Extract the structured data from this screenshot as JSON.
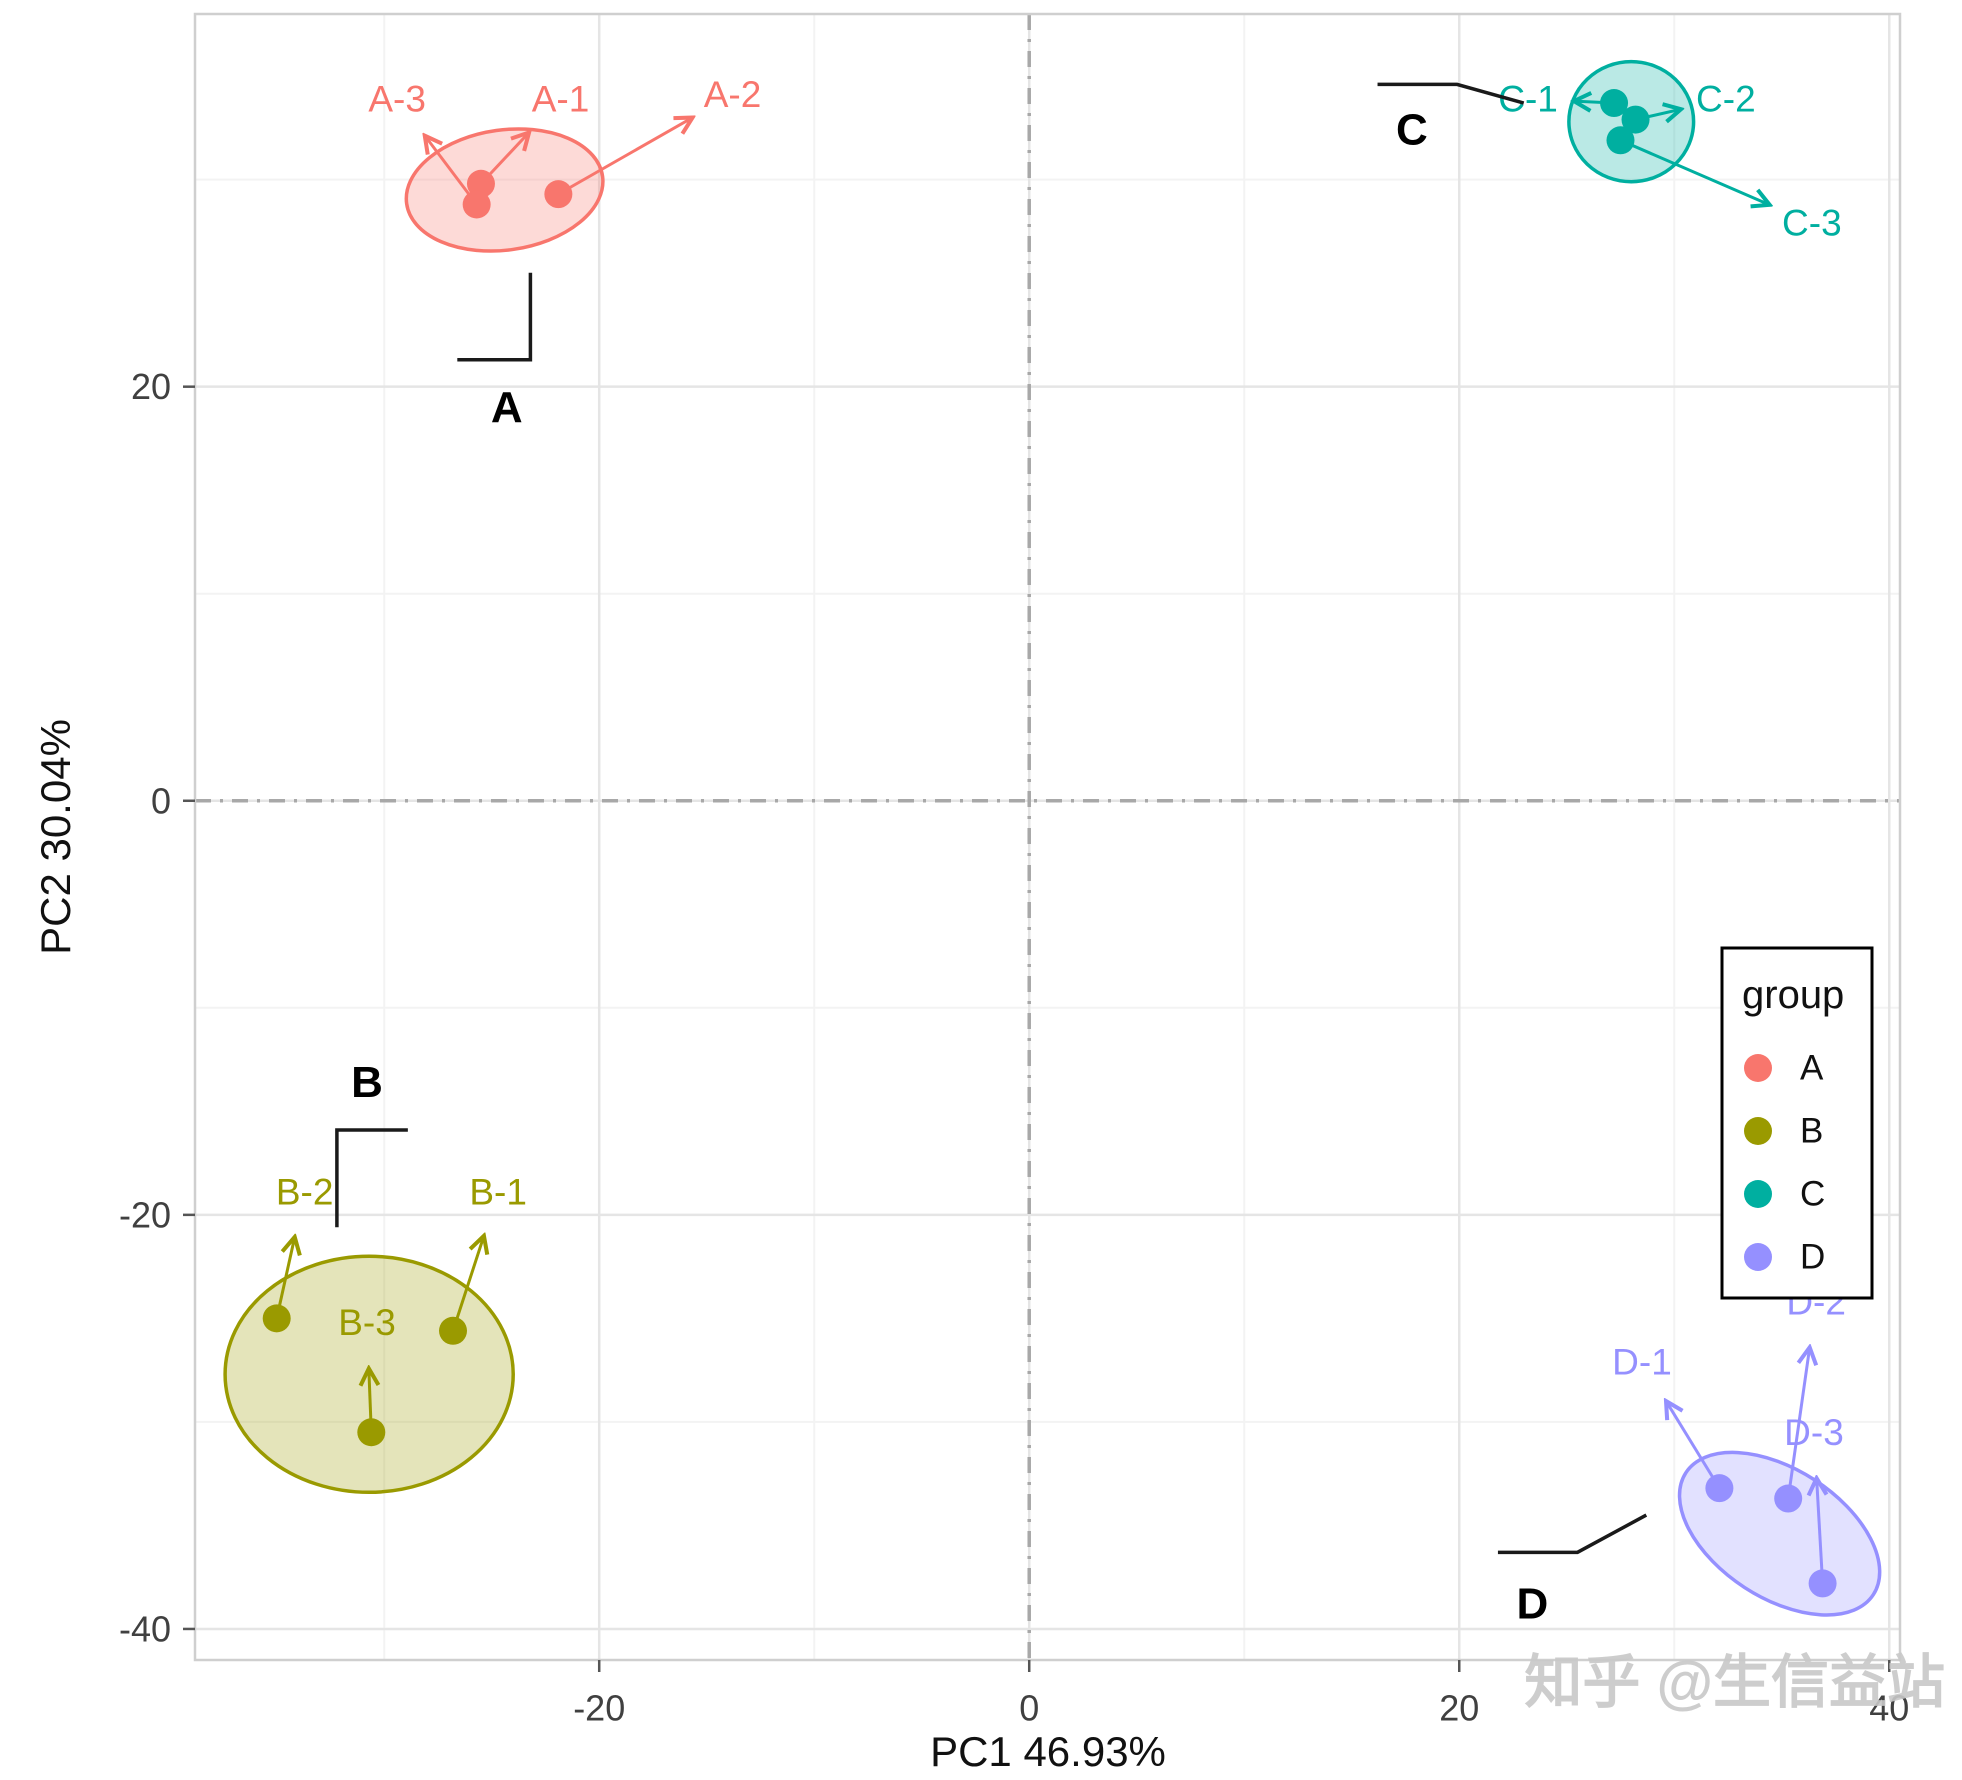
{
  "watermark": "知乎 @生信益站",
  "chart_data": {
    "type": "scatter",
    "title": "",
    "xlabel": "PC1 46.93%",
    "ylabel": "PC2 30.04%",
    "xlim": [
      -38.8,
      40.5
    ],
    "ylim": [
      -41.5,
      38
    ],
    "xticks": [
      -20,
      0,
      20,
      40
    ],
    "yticks": [
      -40,
      -20,
      0,
      20
    ],
    "minor_step": 10,
    "grid": true,
    "zero_lines": true,
    "legend_position": "right-inside",
    "groups": [
      {
        "name": "A",
        "color": "#F8766D",
        "ellipse": {
          "cx": -24.4,
          "cy": 29.5,
          "rx": 4.6,
          "ry": 2.9,
          "rot": -8
        },
        "points": [
          {
            "label": "A-1",
            "x": -25.5,
            "y": 29.8,
            "lx": -21.8,
            "ly": 33.9
          },
          {
            "label": "A-2",
            "x": -21.9,
            "y": 29.3,
            "lx": -13.8,
            "ly": 34.1
          },
          {
            "label": "A-3",
            "x": -25.7,
            "y": 28.8,
            "lx": -29.4,
            "ly": 33.9
          }
        ],
        "annotation": {
          "x": -24.3,
          "y": 19.0,
          "line": [
            [
              -23.2,
              25.5
            ],
            [
              -23.2,
              21.3
            ],
            [
              -26.6,
              21.3
            ]
          ]
        }
      },
      {
        "name": "B",
        "color": "#9A9A00",
        "ellipse": {
          "cx": -30.7,
          "cy": -27.7,
          "rx": 6.7,
          "ry": 5.7,
          "rot": 0
        },
        "points": [
          {
            "label": "B-1",
            "x": -26.8,
            "y": -25.6,
            "lx": -24.7,
            "ly": -18.9
          },
          {
            "label": "B-2",
            "x": -35.0,
            "y": -25.0,
            "lx": -33.7,
            "ly": -18.9
          },
          {
            "label": "B-3",
            "x": -30.6,
            "y": -30.5,
            "lx": -30.8,
            "ly": -25.2
          }
        ],
        "annotation": {
          "x": -30.8,
          "y": -13.6,
          "line": [
            [
              -32.2,
              -20.6
            ],
            [
              -32.2,
              -15.9
            ],
            [
              -28.9,
              -15.9
            ]
          ]
        }
      },
      {
        "name": "C",
        "color": "#00AFA0",
        "ellipse": {
          "cx": 28.0,
          "cy": 32.8,
          "rx": 2.9,
          "ry": 2.9,
          "rot": 0
        },
        "points": [
          {
            "label": "C-1",
            "x": 27.2,
            "y": 33.7,
            "lx": 23.2,
            "ly": 33.9
          },
          {
            "label": "C-2",
            "x": 28.2,
            "y": 32.9,
            "lx": 32.4,
            "ly": 33.9
          },
          {
            "label": "C-3",
            "x": 27.5,
            "y": 31.9,
            "lx": 36.4,
            "ly": 27.9
          }
        ],
        "annotation": {
          "x": 17.8,
          "y": 32.4,
          "line": [
            [
              16.2,
              34.6
            ],
            [
              19.9,
              34.6
            ],
            [
              23.0,
              33.7
            ]
          ]
        }
      },
      {
        "name": "D",
        "color": "#9590FF",
        "ellipse": {
          "cx": 34.9,
          "cy": -35.4,
          "rx": 5.2,
          "ry": 3.1,
          "rot": 33
        },
        "points": [
          {
            "label": "D-1",
            "x": 32.1,
            "y": -33.2,
            "lx": 28.5,
            "ly": -27.1
          },
          {
            "label": "D-2",
            "x": 35.3,
            "y": -33.7,
            "lx": 36.6,
            "ly": -24.2
          },
          {
            "label": "D-3",
            "x": 36.9,
            "y": -37.8,
            "lx": 36.5,
            "ly": -30.5
          }
        ],
        "annotation": {
          "x": 23.4,
          "y": -38.8,
          "line": [
            [
              21.8,
              -36.3
            ],
            [
              25.5,
              -36.3
            ],
            [
              28.7,
              -34.5
            ]
          ]
        }
      }
    ],
    "legend": {
      "title": "group",
      "items": [
        {
          "label": "A",
          "color": "#F8766D"
        },
        {
          "label": "B",
          "color": "#9A9A00"
        },
        {
          "label": "C",
          "color": "#00AFA0"
        },
        {
          "label": "D",
          "color": "#9590FF"
        }
      ]
    }
  }
}
